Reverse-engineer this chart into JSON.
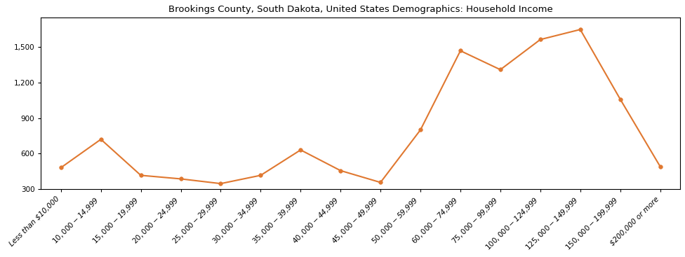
{
  "title": "Brookings County, South Dakota, United States Demographics: Household Income",
  "categories": [
    "Less than $10,000",
    "$10,000 - $14,999",
    "$15,000 - $19,999",
    "$20,000 - $24,999",
    "$25,000 - $29,999",
    "$30,000 - $34,999",
    "$35,000 - $39,999",
    "$40,000 - $44,999",
    "$45,000 - $49,999",
    "$50,000 - $59,999",
    "$60,000 - $74,999",
    "$75,000 - $99,999",
    "$100,000 - $124,999",
    "$125,000 - $149,999",
    "$150,000 - $199,999",
    "$200,000 or more"
  ],
  "values": [
    480,
    720,
    415,
    385,
    345,
    415,
    630,
    455,
    355,
    800,
    1470,
    1310,
    1565,
    1650,
    1060,
    490
  ],
  "line_color": "#E07830",
  "marker_color": "#E07830",
  "marker_style": "o",
  "marker_size": 4,
  "line_width": 1.5,
  "ylim": [
    300,
    1750
  ],
  "yticks": [
    300,
    600,
    900,
    1200,
    1500
  ],
  "background_color": "#ffffff",
  "title_fontsize": 9.5,
  "tick_fontsize": 7.5,
  "box_frame": true
}
